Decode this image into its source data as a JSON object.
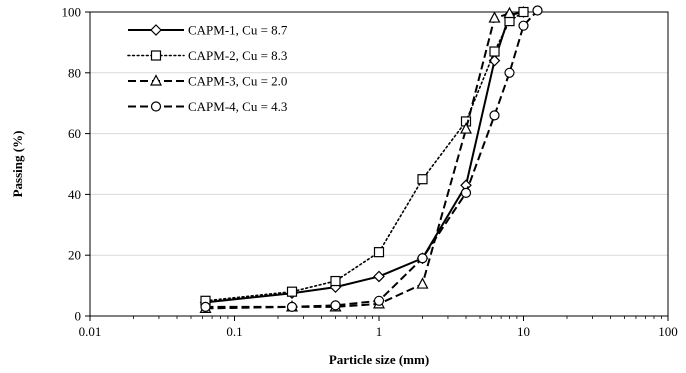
{
  "chart_data": {
    "type": "scatter",
    "xscale": "log",
    "xlabel": "Particle size (mm)",
    "ylabel": "Passing (%)",
    "xlim": [
      0.01,
      100
    ],
    "ylim": [
      0,
      100
    ],
    "xticks": [
      0.01,
      0.1,
      1,
      10,
      100
    ],
    "xtick_labels": [
      "0.01",
      "0.1",
      "1",
      "10",
      "100"
    ],
    "yticks": [
      0,
      20,
      40,
      60,
      80,
      100
    ],
    "ytick_labels": [
      "0",
      "20",
      "40",
      "60",
      "80",
      "100"
    ],
    "grid": "horizontal",
    "legend_position": "top-left",
    "series": [
      {
        "name": "CAPM-1, Cu = 8.7",
        "line": "solid",
        "marker": "diamond",
        "x": [
          0.063,
          0.25,
          0.5,
          1,
          2,
          4,
          6.3,
          8,
          10
        ],
        "y": [
          4.5,
          7.5,
          9.5,
          13,
          19,
          43,
          84,
          99,
          100
        ]
      },
      {
        "name": "CAPM-2, Cu = 8.3",
        "line": "dotted",
        "marker": "square",
        "x": [
          0.063,
          0.25,
          0.5,
          1,
          2,
          4,
          6.3,
          8,
          10
        ],
        "y": [
          5,
          8,
          11.5,
          21,
          45,
          64,
          87,
          97,
          100
        ]
      },
      {
        "name": "CAPM-3, Cu = 2.0",
        "line": "dashed",
        "marker": "triangle",
        "x": [
          0.063,
          0.25,
          0.5,
          1,
          2,
          4,
          6.3,
          8
        ],
        "y": [
          2.5,
          3,
          3,
          4,
          10.5,
          61.5,
          98,
          99.5
        ]
      },
      {
        "name": "CAPM-4, Cu = 4.3",
        "line": "dashed",
        "marker": "circle",
        "x": [
          0.063,
          0.25,
          0.5,
          1,
          2,
          4,
          6.3,
          8,
          10,
          12.5
        ],
        "y": [
          3,
          3,
          3.5,
          5,
          19,
          40.5,
          66,
          80,
          95.5,
          100.5
        ]
      }
    ]
  }
}
